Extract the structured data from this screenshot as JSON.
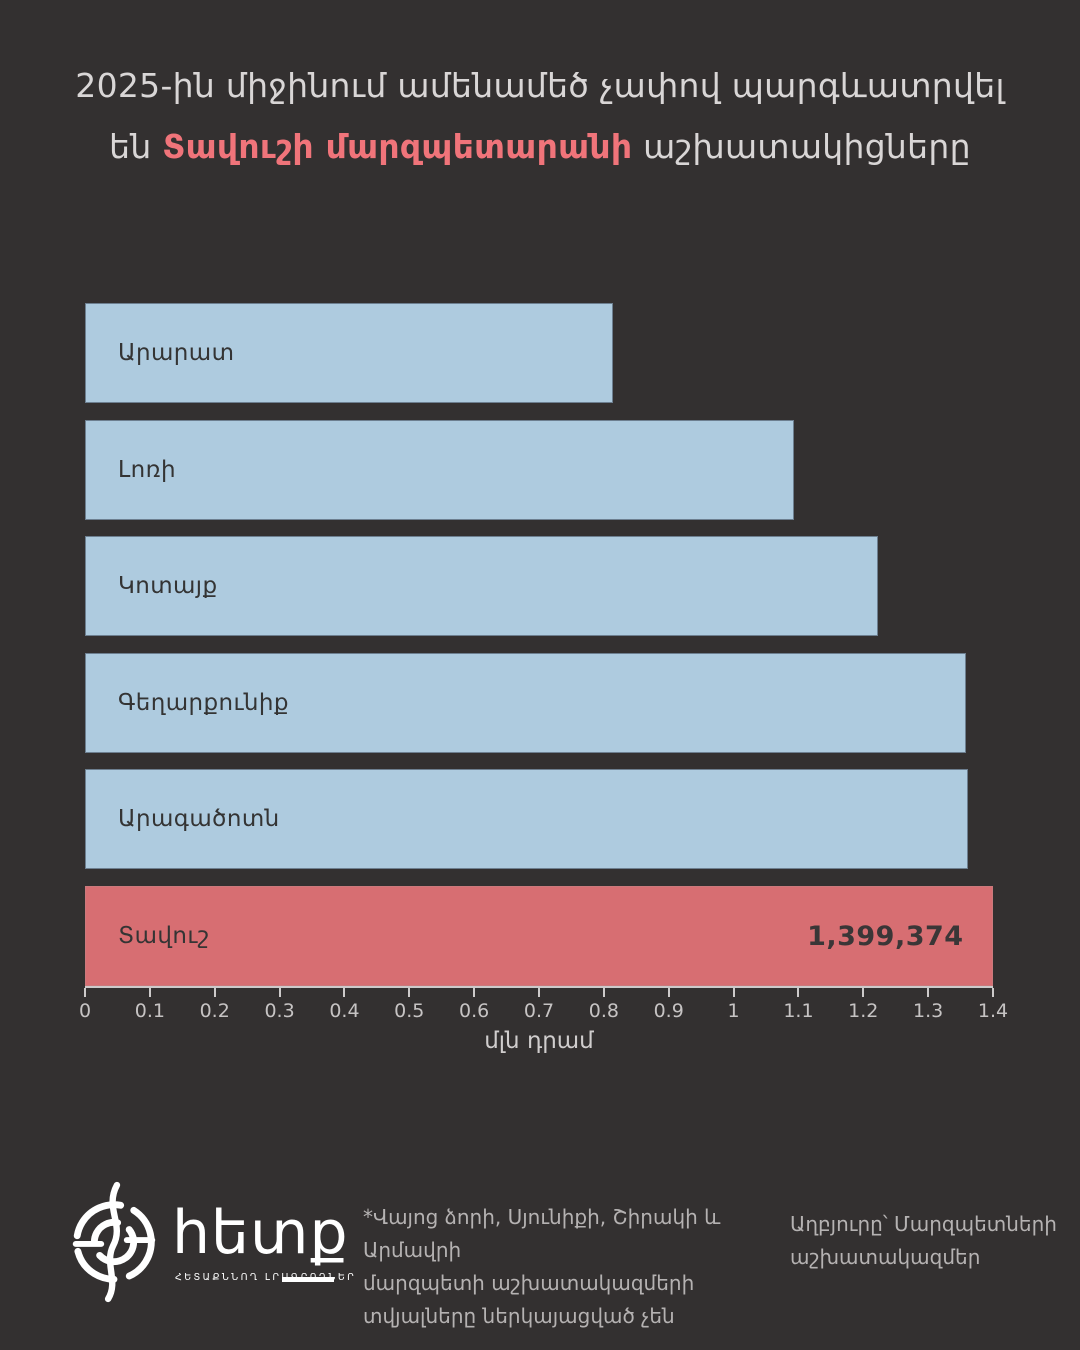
{
  "page": {
    "bg_color": "#333030",
    "accent_color": "#f0747a",
    "bar_color": "#aecbdf",
    "highlight_bar_color": "#d76e72"
  },
  "title": {
    "line1": "2025-ին միջինում ամենամեծ չափով պարգևատրվել",
    "line2_prefix": "են ",
    "line2_highlight": "Տավուշի մարզպետարանի",
    "line2_suffix": " աշխատակիցները"
  },
  "chart_data": {
    "type": "bar",
    "orientation": "horizontal",
    "categories": [
      "Արարատ",
      "Լոռի",
      "Կոտայք",
      "Գեղարքունիք",
      "Արագածոտն",
      "Տավուշ"
    ],
    "values": [
      0.814,
      1.093,
      1.223,
      1.358,
      1.362,
      1.399374
    ],
    "highlight_index": 5,
    "highlight_value_label": "1,399,374",
    "xlabel": "մլն դրամ",
    "xlim": [
      0,
      1.4
    ],
    "xticks": [
      "0",
      "0.1",
      "0.2",
      "0.3",
      "0.4",
      "0.5",
      "0.6",
      "0.7",
      "0.8",
      "0.9",
      "1",
      "1.1",
      "1.2",
      "1.3",
      "1.4"
    ],
    "grid": false,
    "legend": false
  },
  "footer": {
    "logo_word": "հետք",
    "logo_caption": "ՀԵՏԱՔՆՆՈՂ ԼՐԱԳՐՈՂՆԵՐ",
    "note_left_lines": [
      "*Վայոց ձորի, Սյունիքի, Շիրակի և Արմավրի",
      "մարզպետի աշխատակազմերի",
      "տվյալները ներկայացված չեն"
    ],
    "note_right_lines": [
      "Աղբյուրը՝ Մարզպետների",
      "աշխատակազմեր"
    ]
  }
}
